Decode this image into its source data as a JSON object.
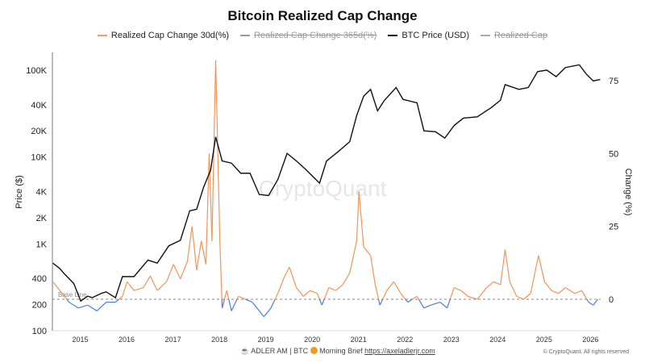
{
  "footer": {
    "brand": "ADLER AM | BTC",
    "brief": "Morning Brief",
    "link": "https://axeladlerjr.com",
    "copyright": "© CryptoQuant. All rights reserved",
    "watermark": "CryptoQuant"
  },
  "chart_data": {
    "type": "line",
    "title": "Bitcoin Realized Cap Change",
    "ylabel_left": "Price ($)",
    "ylabel_right": "Change (%)",
    "left_scale": "log",
    "left_ticks": [
      100,
      200,
      400,
      1000,
      2000,
      4000,
      10000,
      20000,
      40000,
      100000
    ],
    "left_tick_labels": [
      "100",
      "200",
      "400",
      "1K",
      "2K",
      "4K",
      "10K",
      "20K",
      "40K",
      "100K"
    ],
    "right_ticks": [
      0,
      25,
      50,
      75
    ],
    "right_tick_labels": [
      "0",
      "25",
      "50",
      "75"
    ],
    "right_ylim": [
      -10.8,
      84.7
    ],
    "left_ylim": [
      100,
      200000
    ],
    "xlim": [
      2014.44,
      2026.26
    ],
    "x_ticks": [
      "2015",
      "2016",
      "2017",
      "2018",
      "2019",
      "2020",
      "2021",
      "2022",
      "2023",
      "2024",
      "2025",
      "2026"
    ],
    "base_line": {
      "label": "Base Line",
      "value": 0
    },
    "legend": [
      {
        "name": "Realized Cap Change 30d(%)",
        "color": "#f0a060",
        "enabled": true
      },
      {
        "name": "Realized Cap Change 365d(%)",
        "color": "#888888",
        "enabled": false
      },
      {
        "name": "BTC Price (USD)",
        "color": "#111111",
        "enabled": true
      },
      {
        "name": "Realized Cap",
        "color": "#999999",
        "enabled": false
      }
    ],
    "colors": {
      "positive": "#f0955a",
      "negative": "#4a7fd8",
      "price": "#111111"
    },
    "series": [
      {
        "name": "BTC Price (USD)",
        "axis": "left",
        "points": [
          [
            2014.45,
            600
          ],
          [
            2014.6,
            520
          ],
          [
            2014.7,
            450
          ],
          [
            2014.9,
            350
          ],
          [
            2015.05,
            220
          ],
          [
            2015.2,
            250
          ],
          [
            2015.3,
            240
          ],
          [
            2015.5,
            270
          ],
          [
            2015.6,
            280
          ],
          [
            2015.8,
            240
          ],
          [
            2015.95,
            420
          ],
          [
            2016.2,
            420
          ],
          [
            2016.5,
            650
          ],
          [
            2016.7,
            600
          ],
          [
            2016.95,
            950
          ],
          [
            2017.2,
            1100
          ],
          [
            2017.4,
            2400
          ],
          [
            2017.55,
            2500
          ],
          [
            2017.7,
            4500
          ],
          [
            2017.85,
            7000
          ],
          [
            2017.96,
            17000
          ],
          [
            2018.1,
            9000
          ],
          [
            2018.3,
            8500
          ],
          [
            2018.5,
            6500
          ],
          [
            2018.7,
            6500
          ],
          [
            2018.9,
            3700
          ],
          [
            2019.1,
            3600
          ],
          [
            2019.3,
            5500
          ],
          [
            2019.5,
            11000
          ],
          [
            2019.7,
            9000
          ],
          [
            2019.9,
            7200
          ],
          [
            2020.2,
            5000
          ],
          [
            2020.35,
            9000
          ],
          [
            2020.6,
            11500
          ],
          [
            2020.85,
            15000
          ],
          [
            2021.0,
            30000
          ],
          [
            2021.15,
            50000
          ],
          [
            2021.3,
            60000
          ],
          [
            2021.45,
            34000
          ],
          [
            2021.6,
            45000
          ],
          [
            2021.85,
            63000
          ],
          [
            2022.0,
            46000
          ],
          [
            2022.3,
            42000
          ],
          [
            2022.45,
            20000
          ],
          [
            2022.7,
            19500
          ],
          [
            2022.9,
            16500
          ],
          [
            2023.1,
            23000
          ],
          [
            2023.3,
            28000
          ],
          [
            2023.6,
            29000
          ],
          [
            2023.9,
            37000
          ],
          [
            2024.1,
            45000
          ],
          [
            2024.2,
            68000
          ],
          [
            2024.5,
            60000
          ],
          [
            2024.7,
            63000
          ],
          [
            2024.9,
            96000
          ],
          [
            2025.1,
            100000
          ],
          [
            2025.3,
            84000
          ],
          [
            2025.5,
            107000
          ],
          [
            2025.8,
            115000
          ],
          [
            2025.95,
            90000
          ],
          [
            2026.1,
            75000
          ],
          [
            2026.25,
            78000
          ]
        ]
      },
      {
        "name": "Realized Cap Change 30d(%)",
        "axis": "right",
        "points": [
          [
            2014.45,
            6
          ],
          [
            2014.6,
            3
          ],
          [
            2014.8,
            -1
          ],
          [
            2015.0,
            -3
          ],
          [
            2015.2,
            -2
          ],
          [
            2015.4,
            -4
          ],
          [
            2015.6,
            -1
          ],
          [
            2015.8,
            -1
          ],
          [
            2015.95,
            1
          ],
          [
            2016.05,
            6
          ],
          [
            2016.2,
            3
          ],
          [
            2016.4,
            4
          ],
          [
            2016.55,
            8
          ],
          [
            2016.7,
            3
          ],
          [
            2016.9,
            6
          ],
          [
            2017.05,
            12
          ],
          [
            2017.2,
            7
          ],
          [
            2017.35,
            13
          ],
          [
            2017.45,
            25
          ],
          [
            2017.55,
            10
          ],
          [
            2017.65,
            20
          ],
          [
            2017.75,
            12
          ],
          [
            2017.82,
            50
          ],
          [
            2017.88,
            20
          ],
          [
            2017.96,
            82
          ],
          [
            2018.05,
            20
          ],
          [
            2018.1,
            -3
          ],
          [
            2018.2,
            3
          ],
          [
            2018.3,
            -4
          ],
          [
            2018.45,
            1
          ],
          [
            2018.6,
            0
          ],
          [
            2018.75,
            -1
          ],
          [
            2018.9,
            -4
          ],
          [
            2019.0,
            -6
          ],
          [
            2019.15,
            -3
          ],
          [
            2019.3,
            2
          ],
          [
            2019.45,
            8
          ],
          [
            2019.55,
            11
          ],
          [
            2019.7,
            4
          ],
          [
            2019.85,
            1
          ],
          [
            2020.0,
            3
          ],
          [
            2020.15,
            2
          ],
          [
            2020.25,
            -2
          ],
          [
            2020.4,
            4
          ],
          [
            2020.55,
            3
          ],
          [
            2020.7,
            5
          ],
          [
            2020.85,
            9
          ],
          [
            2021.0,
            20
          ],
          [
            2021.05,
            37
          ],
          [
            2021.15,
            18
          ],
          [
            2021.3,
            15
          ],
          [
            2021.4,
            5
          ],
          [
            2021.5,
            -2
          ],
          [
            2021.65,
            3
          ],
          [
            2021.8,
            6
          ],
          [
            2021.95,
            2
          ],
          [
            2022.1,
            -1
          ],
          [
            2022.3,
            1
          ],
          [
            2022.45,
            -3
          ],
          [
            2022.6,
            -2
          ],
          [
            2022.8,
            -1
          ],
          [
            2022.95,
            -3
          ],
          [
            2023.1,
            4
          ],
          [
            2023.25,
            3
          ],
          [
            2023.4,
            1
          ],
          [
            2023.6,
            0
          ],
          [
            2023.8,
            4
          ],
          [
            2023.95,
            6
          ],
          [
            2024.1,
            5
          ],
          [
            2024.2,
            17
          ],
          [
            2024.3,
            6
          ],
          [
            2024.45,
            1
          ],
          [
            2024.6,
            0
          ],
          [
            2024.75,
            2
          ],
          [
            2024.92,
            15
          ],
          [
            2025.05,
            6
          ],
          [
            2025.2,
            3
          ],
          [
            2025.35,
            2
          ],
          [
            2025.5,
            4
          ],
          [
            2025.7,
            2
          ],
          [
            2025.85,
            3
          ],
          [
            2026.0,
            -1
          ],
          [
            2026.1,
            -2
          ],
          [
            2026.2,
            0
          ]
        ]
      }
    ]
  }
}
